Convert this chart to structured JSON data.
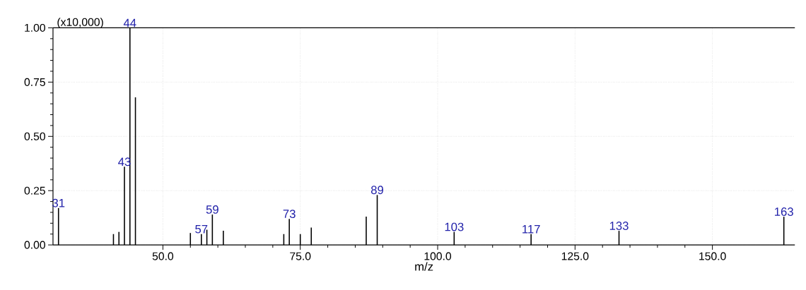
{
  "chart_data": {
    "type": "bar",
    "xlabel": "m/z",
    "ylabel": "(x10,000)",
    "color": "#000000",
    "grid": true,
    "x": [
      31,
      41,
      42,
      43,
      44,
      45,
      55,
      57,
      58,
      59,
      61,
      72,
      73,
      75,
      77,
      87,
      89,
      103,
      117,
      133,
      163
    ],
    "values": [
      0.17,
      0.05,
      0.06,
      0.36,
      1.0,
      0.68,
      0.055,
      0.05,
      0.07,
      0.14,
      0.065,
      0.05,
      0.12,
      0.05,
      0.08,
      0.13,
      0.23,
      0.06,
      0.05,
      0.065,
      0.13
    ],
    "xlim": [
      30,
      165
    ],
    "ylim": [
      0,
      1.0
    ],
    "xticks": [
      {
        "value": 50,
        "label": "50.0"
      },
      {
        "value": 75,
        "label": "75.0"
      },
      {
        "value": 100,
        "label": "100.0"
      },
      {
        "value": 125,
        "label": "125.0"
      },
      {
        "value": 150,
        "label": "150.0"
      }
    ],
    "yticks": [
      {
        "value": 0,
        "label": "0.00"
      },
      {
        "value": 0.25,
        "label": "0.25"
      },
      {
        "value": 0.5,
        "label": "0.50"
      },
      {
        "value": 0.75,
        "label": "0.75"
      },
      {
        "value": 1.0,
        "label": "1.00"
      }
    ],
    "annotations": [
      {
        "text": "31",
        "x": 31,
        "y": 0.17
      },
      {
        "text": "43",
        "x": 43,
        "y": 0.36
      },
      {
        "text": "44",
        "x": 44,
        "y": 1.0
      },
      {
        "text": "57",
        "x": 57,
        "y": 0.05
      },
      {
        "text": "59",
        "x": 59,
        "y": 0.14
      },
      {
        "text": "73",
        "x": 73,
        "y": 0.12
      },
      {
        "text": "89",
        "x": 89,
        "y": 0.23
      },
      {
        "text": "103",
        "x": 103,
        "y": 0.06
      },
      {
        "text": "117",
        "x": 117,
        "y": 0.05
      },
      {
        "text": "133",
        "x": 133,
        "y": 0.065
      },
      {
        "text": "163",
        "x": 163,
        "y": 0.13
      }
    ]
  }
}
